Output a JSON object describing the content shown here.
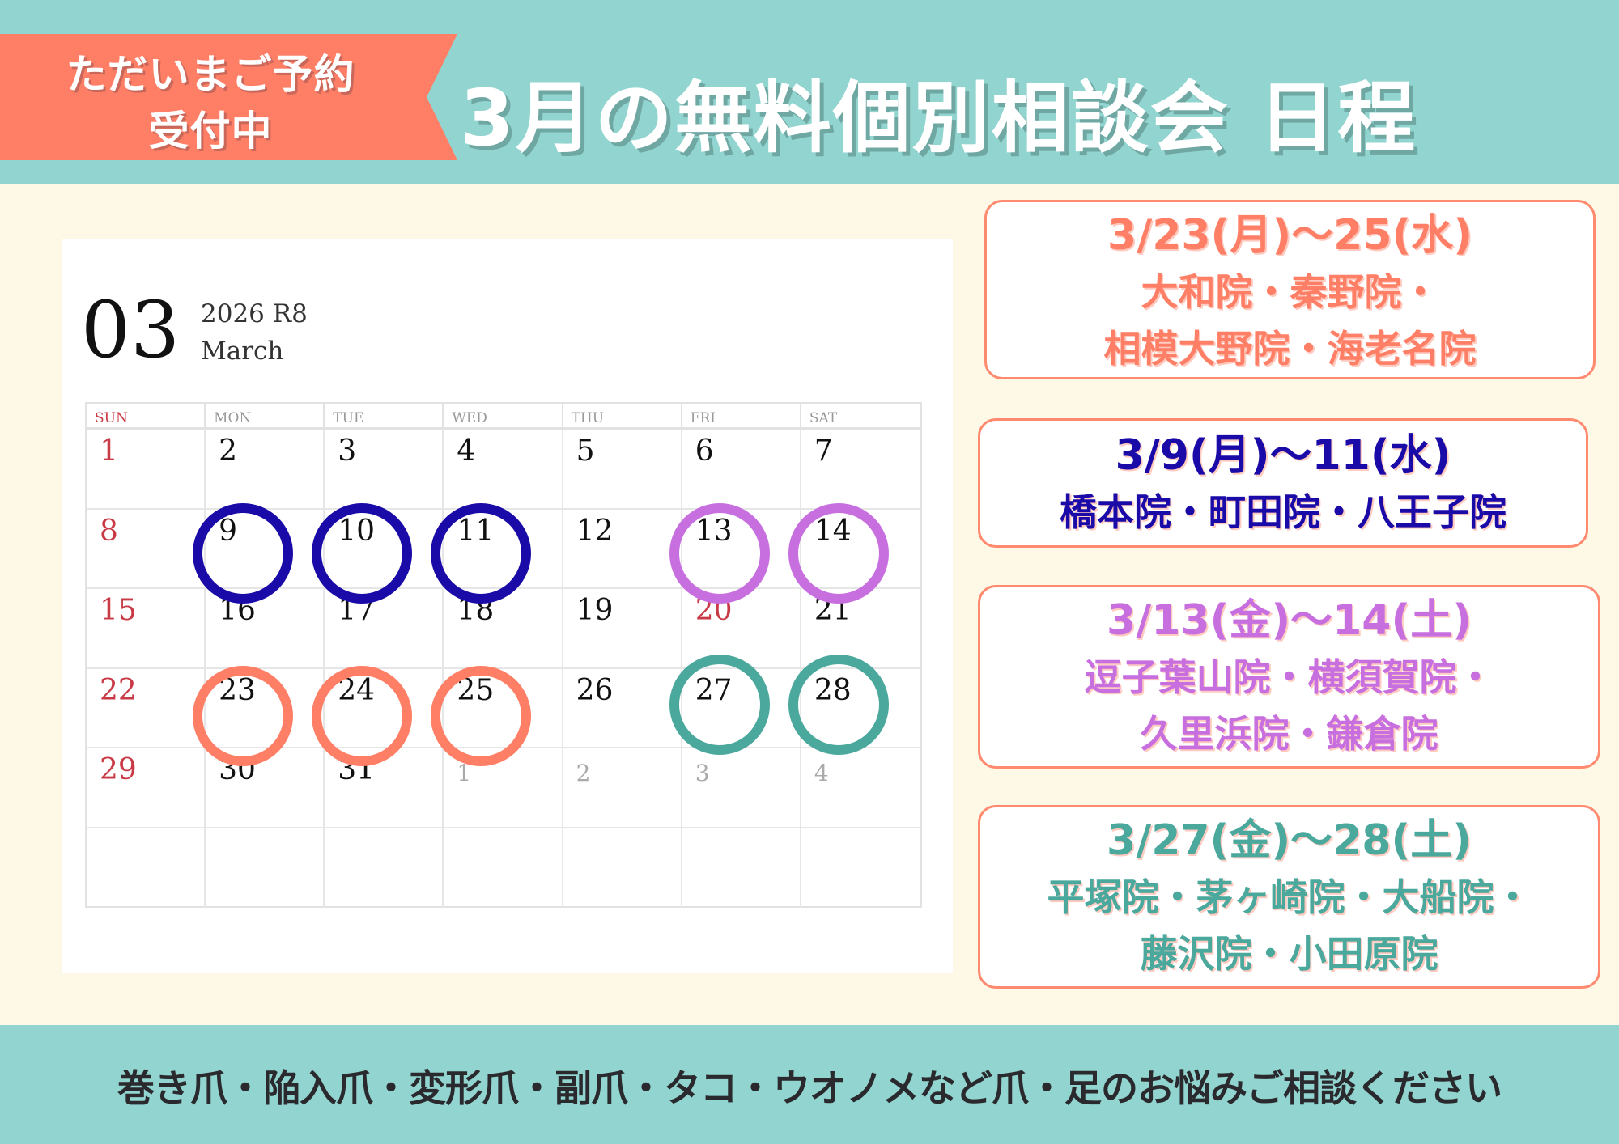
{
  "header": {
    "ribbon_line1": "ただいまご予約",
    "ribbon_line2": "受付中",
    "title": "3月の無料個別相談会 日程"
  },
  "calendar": {
    "month_number": "03",
    "year_label": "2026 R8",
    "month_name": "March",
    "weekdays": [
      "SUN",
      "MON",
      "TUE",
      "WED",
      "THU",
      "FRI",
      "SAT"
    ],
    "weeks": [
      [
        {
          "day": "1",
          "type": "sun"
        },
        {
          "day": "2"
        },
        {
          "day": "3"
        },
        {
          "day": "4"
        },
        {
          "day": "5"
        },
        {
          "day": "6"
        },
        {
          "day": "7"
        }
      ],
      [
        {
          "day": "8",
          "type": "sun"
        },
        {
          "day": "9"
        },
        {
          "day": "10"
        },
        {
          "day": "11"
        },
        {
          "day": "12"
        },
        {
          "day": "13"
        },
        {
          "day": "14"
        }
      ],
      [
        {
          "day": "15",
          "type": "sun"
        },
        {
          "day": "16"
        },
        {
          "day": "17"
        },
        {
          "day": "18"
        },
        {
          "day": "19"
        },
        {
          "day": "20",
          "type": "sun"
        },
        {
          "day": "21"
        }
      ],
      [
        {
          "day": "22",
          "type": "sun"
        },
        {
          "day": "23"
        },
        {
          "day": "24"
        },
        {
          "day": "25"
        },
        {
          "day": "26"
        },
        {
          "day": "27"
        },
        {
          "day": "28"
        }
      ],
      [
        {
          "day": "29",
          "type": "sun"
        },
        {
          "day": "30"
        },
        {
          "day": "31"
        },
        {
          "day": "1",
          "type": "muted"
        },
        {
          "day": "2",
          "type": "muted"
        },
        {
          "day": "3",
          "type": "muted"
        },
        {
          "day": "4",
          "type": "muted"
        }
      ],
      [
        {
          "day": ""
        },
        {
          "day": ""
        },
        {
          "day": ""
        },
        {
          "day": ""
        },
        {
          "day": ""
        },
        {
          "day": ""
        },
        {
          "day": ""
        }
      ]
    ],
    "highlights": [
      {
        "days": [
          "9",
          "10",
          "11"
        ],
        "color": "#1a0aa8"
      },
      {
        "days": [
          "13",
          "14"
        ],
        "color": "#c86fe0"
      },
      {
        "days": [
          "23",
          "24",
          "25"
        ],
        "color": "#ff7f66"
      },
      {
        "days": [
          "27",
          "28"
        ],
        "color": "#4aa89c"
      }
    ]
  },
  "schedule": [
    {
      "date": "3/23(月)～25(水)",
      "locations": [
        "大和院・秦野院・",
        "相模大野院・海老名院"
      ],
      "color": "#ff7f66"
    },
    {
      "date": "3/9(月)～11(水)",
      "locations": [
        "橋本院・町田院・八王子院"
      ],
      "color": "#1a0aa8"
    },
    {
      "date": "3/13(金)～14(土)",
      "locations": [
        "逗子葉山院・横須賀院・",
        "久里浜院・鎌倉院"
      ],
      "color": "#c86fe0"
    },
    {
      "date": "3/27(金)～28(土)",
      "locations": [
        "平塚院・茅ヶ崎院・大船院・",
        "藤沢院・小田原院"
      ],
      "color": "#4aa89c"
    }
  ],
  "footer": {
    "text": "巻き爪・陥入爪・変形爪・副爪・タコ・ウオノメなど爪・足のお悩みご相談ください"
  }
}
